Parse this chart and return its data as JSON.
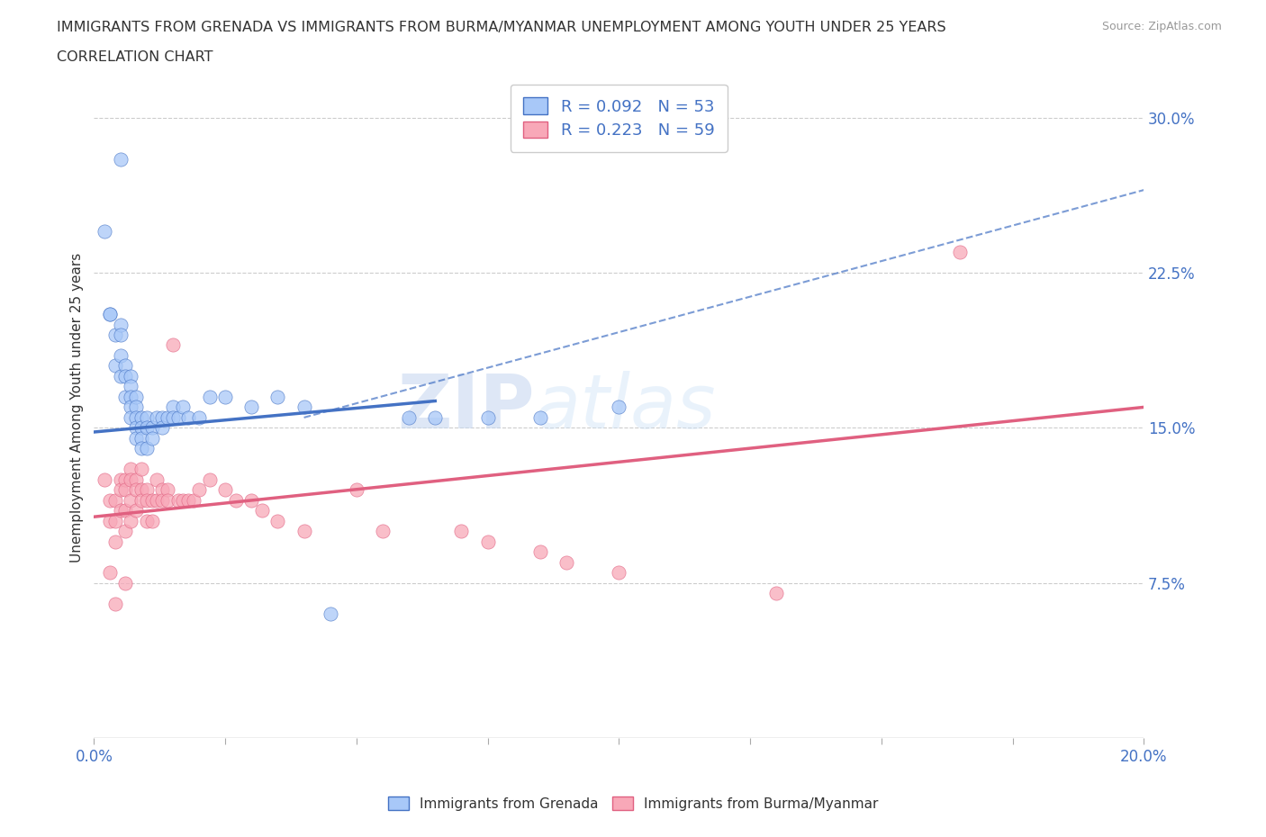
{
  "title_line1": "IMMIGRANTS FROM GRENADA VS IMMIGRANTS FROM BURMA/MYANMAR UNEMPLOYMENT AMONG YOUTH UNDER 25 YEARS",
  "title_line2": "CORRELATION CHART",
  "source": "Source: ZipAtlas.com",
  "ylabel": "Unemployment Among Youth under 25 years",
  "xlim": [
    0.0,
    0.2
  ],
  "ylim": [
    0.0,
    0.32
  ],
  "R_grenada": 0.092,
  "N_grenada": 53,
  "R_burma": 0.223,
  "N_burma": 59,
  "color_grenada": "#a8c8f8",
  "color_burma": "#f8a8b8",
  "color_grenada_line": "#4472c4",
  "color_burma_line": "#e06080",
  "color_legend_text": "#4472c4",
  "watermark_zip": "ZIP",
  "watermark_atlas": "atlas",
  "grenada_x": [
    0.005,
    0.002,
    0.003,
    0.003,
    0.004,
    0.004,
    0.005,
    0.005,
    0.005,
    0.005,
    0.006,
    0.006,
    0.006,
    0.007,
    0.007,
    0.007,
    0.007,
    0.007,
    0.008,
    0.008,
    0.008,
    0.008,
    0.008,
    0.009,
    0.009,
    0.009,
    0.009,
    0.01,
    0.01,
    0.01,
    0.011,
    0.011,
    0.012,
    0.013,
    0.013,
    0.014,
    0.015,
    0.015,
    0.016,
    0.017,
    0.018,
    0.02,
    0.022,
    0.025,
    0.03,
    0.035,
    0.04,
    0.045,
    0.06,
    0.065,
    0.075,
    0.085,
    0.1
  ],
  "grenada_y": [
    0.28,
    0.245,
    0.205,
    0.205,
    0.195,
    0.18,
    0.2,
    0.195,
    0.185,
    0.175,
    0.18,
    0.175,
    0.165,
    0.175,
    0.17,
    0.165,
    0.16,
    0.155,
    0.165,
    0.16,
    0.155,
    0.15,
    0.145,
    0.155,
    0.15,
    0.145,
    0.14,
    0.155,
    0.15,
    0.14,
    0.15,
    0.145,
    0.155,
    0.155,
    0.15,
    0.155,
    0.16,
    0.155,
    0.155,
    0.16,
    0.155,
    0.155,
    0.165,
    0.165,
    0.16,
    0.165,
    0.16,
    0.06,
    0.155,
    0.155,
    0.155,
    0.155,
    0.16
  ],
  "burma_x": [
    0.002,
    0.003,
    0.003,
    0.003,
    0.004,
    0.004,
    0.004,
    0.004,
    0.005,
    0.005,
    0.005,
    0.006,
    0.006,
    0.006,
    0.006,
    0.006,
    0.007,
    0.007,
    0.007,
    0.007,
    0.008,
    0.008,
    0.008,
    0.009,
    0.009,
    0.009,
    0.01,
    0.01,
    0.01,
    0.011,
    0.011,
    0.012,
    0.012,
    0.013,
    0.013,
    0.014,
    0.014,
    0.015,
    0.016,
    0.017,
    0.018,
    0.019,
    0.02,
    0.022,
    0.025,
    0.027,
    0.03,
    0.032,
    0.035,
    0.04,
    0.05,
    0.055,
    0.07,
    0.075,
    0.085,
    0.09,
    0.1,
    0.13,
    0.165
  ],
  "burma_y": [
    0.125,
    0.115,
    0.105,
    0.08,
    0.115,
    0.105,
    0.095,
    0.065,
    0.125,
    0.12,
    0.11,
    0.125,
    0.12,
    0.11,
    0.1,
    0.075,
    0.13,
    0.125,
    0.115,
    0.105,
    0.125,
    0.12,
    0.11,
    0.13,
    0.12,
    0.115,
    0.12,
    0.115,
    0.105,
    0.115,
    0.105,
    0.125,
    0.115,
    0.12,
    0.115,
    0.12,
    0.115,
    0.19,
    0.115,
    0.115,
    0.115,
    0.115,
    0.12,
    0.125,
    0.12,
    0.115,
    0.115,
    0.11,
    0.105,
    0.1,
    0.12,
    0.1,
    0.1,
    0.095,
    0.09,
    0.085,
    0.08,
    0.07,
    0.235
  ],
  "dashed_line_x": [
    0.04,
    0.2
  ],
  "dashed_line_y": [
    0.155,
    0.265
  ],
  "grenada_trend_x": [
    0.0,
    0.065
  ],
  "grenada_trend_y_start": 0.148,
  "grenada_trend_y_end": 0.163,
  "burma_trend_x": [
    0.0,
    0.2
  ],
  "burma_trend_y_start": 0.107,
  "burma_trend_y_end": 0.16
}
